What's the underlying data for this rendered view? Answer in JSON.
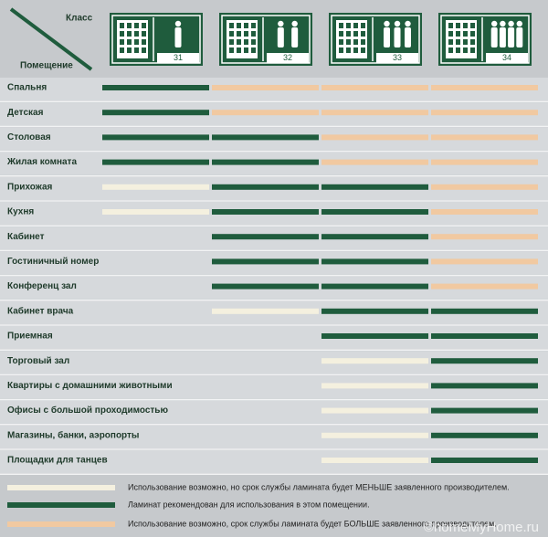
{
  "header": {
    "corner_top": "Класс",
    "corner_bottom": "Помещение",
    "classes": [
      "31",
      "32",
      "33",
      "34"
    ]
  },
  "table": {
    "rows": [
      {
        "label": "Спальня",
        "cells": [
          "#1f5c3d",
          "#f1c9a1",
          "#f1c9a1",
          "#f1c9a1"
        ]
      },
      {
        "label": "Детская",
        "cells": [
          "#1f5c3d",
          "#f1c9a1",
          "#f1c9a1",
          "#f1c9a1"
        ]
      },
      {
        "label": "Столовая",
        "cells": [
          "#1f5c3d",
          "#1f5c3d",
          "#f1c9a1",
          "#f1c9a1"
        ]
      },
      {
        "label": "Жилая комната",
        "cells": [
          "#1f5c3d",
          "#1f5c3d",
          "#f1c9a1",
          "#f1c9a1"
        ]
      },
      {
        "label": "Прихожая",
        "cells": [
          "#f4f0df",
          "#1f5c3d",
          "#1f5c3d",
          "#f1c9a1"
        ]
      },
      {
        "label": "Кухня",
        "cells": [
          "#f4f0df",
          "#1f5c3d",
          "#1f5c3d",
          "#f1c9a1"
        ]
      },
      {
        "label": "Кабинет",
        "cells": [
          null,
          "#1f5c3d",
          "#1f5c3d",
          "#f1c9a1"
        ]
      },
      {
        "label": "Гостиничный номер",
        "cells": [
          null,
          "#1f5c3d",
          "#1f5c3d",
          "#f1c9a1"
        ]
      },
      {
        "label": "Конференц зал",
        "cells": [
          null,
          "#1f5c3d",
          "#1f5c3d",
          "#f1c9a1"
        ]
      },
      {
        "label": "Кабинет врача",
        "cells": [
          null,
          "#f4f0df",
          "#1f5c3d",
          "#1f5c3d"
        ]
      },
      {
        "label": "Приемная",
        "cells": [
          null,
          null,
          "#1f5c3d",
          "#1f5c3d"
        ]
      },
      {
        "label": "Торговый зал",
        "cells": [
          null,
          null,
          "#f4f0df",
          "#1f5c3d"
        ]
      },
      {
        "label": "Квартиры с домашними животными",
        "cells": [
          null,
          null,
          "#f4f0df",
          "#1f5c3d"
        ]
      },
      {
        "label": "Офисы с большой проходимостью",
        "cells": [
          null,
          null,
          "#f4f0df",
          "#1f5c3d"
        ]
      },
      {
        "label": "Магазины,  банки, аэропорты",
        "cells": [
          null,
          null,
          "#f4f0df",
          "#1f5c3d"
        ]
      },
      {
        "label": "Площадки для танцев",
        "cells": [
          null,
          null,
          "#f4f0df",
          "#1f5c3d"
        ]
      }
    ]
  },
  "legend": [
    {
      "color": "#f4f0df",
      "text": "Использование возможно, но срок службы ламината будет МЕНЬШЕ заявленного производителем."
    },
    {
      "color": "#1f5c3d",
      "text": "Ламинат рекомендован для использования в этом помещении."
    },
    {
      "color": "#f1c9a1",
      "text": "Использование возможно, срок службы ламината будет БОЛЬШЕ заявленного производителем."
    }
  ],
  "watermark": "©homeMyHome.ru"
}
